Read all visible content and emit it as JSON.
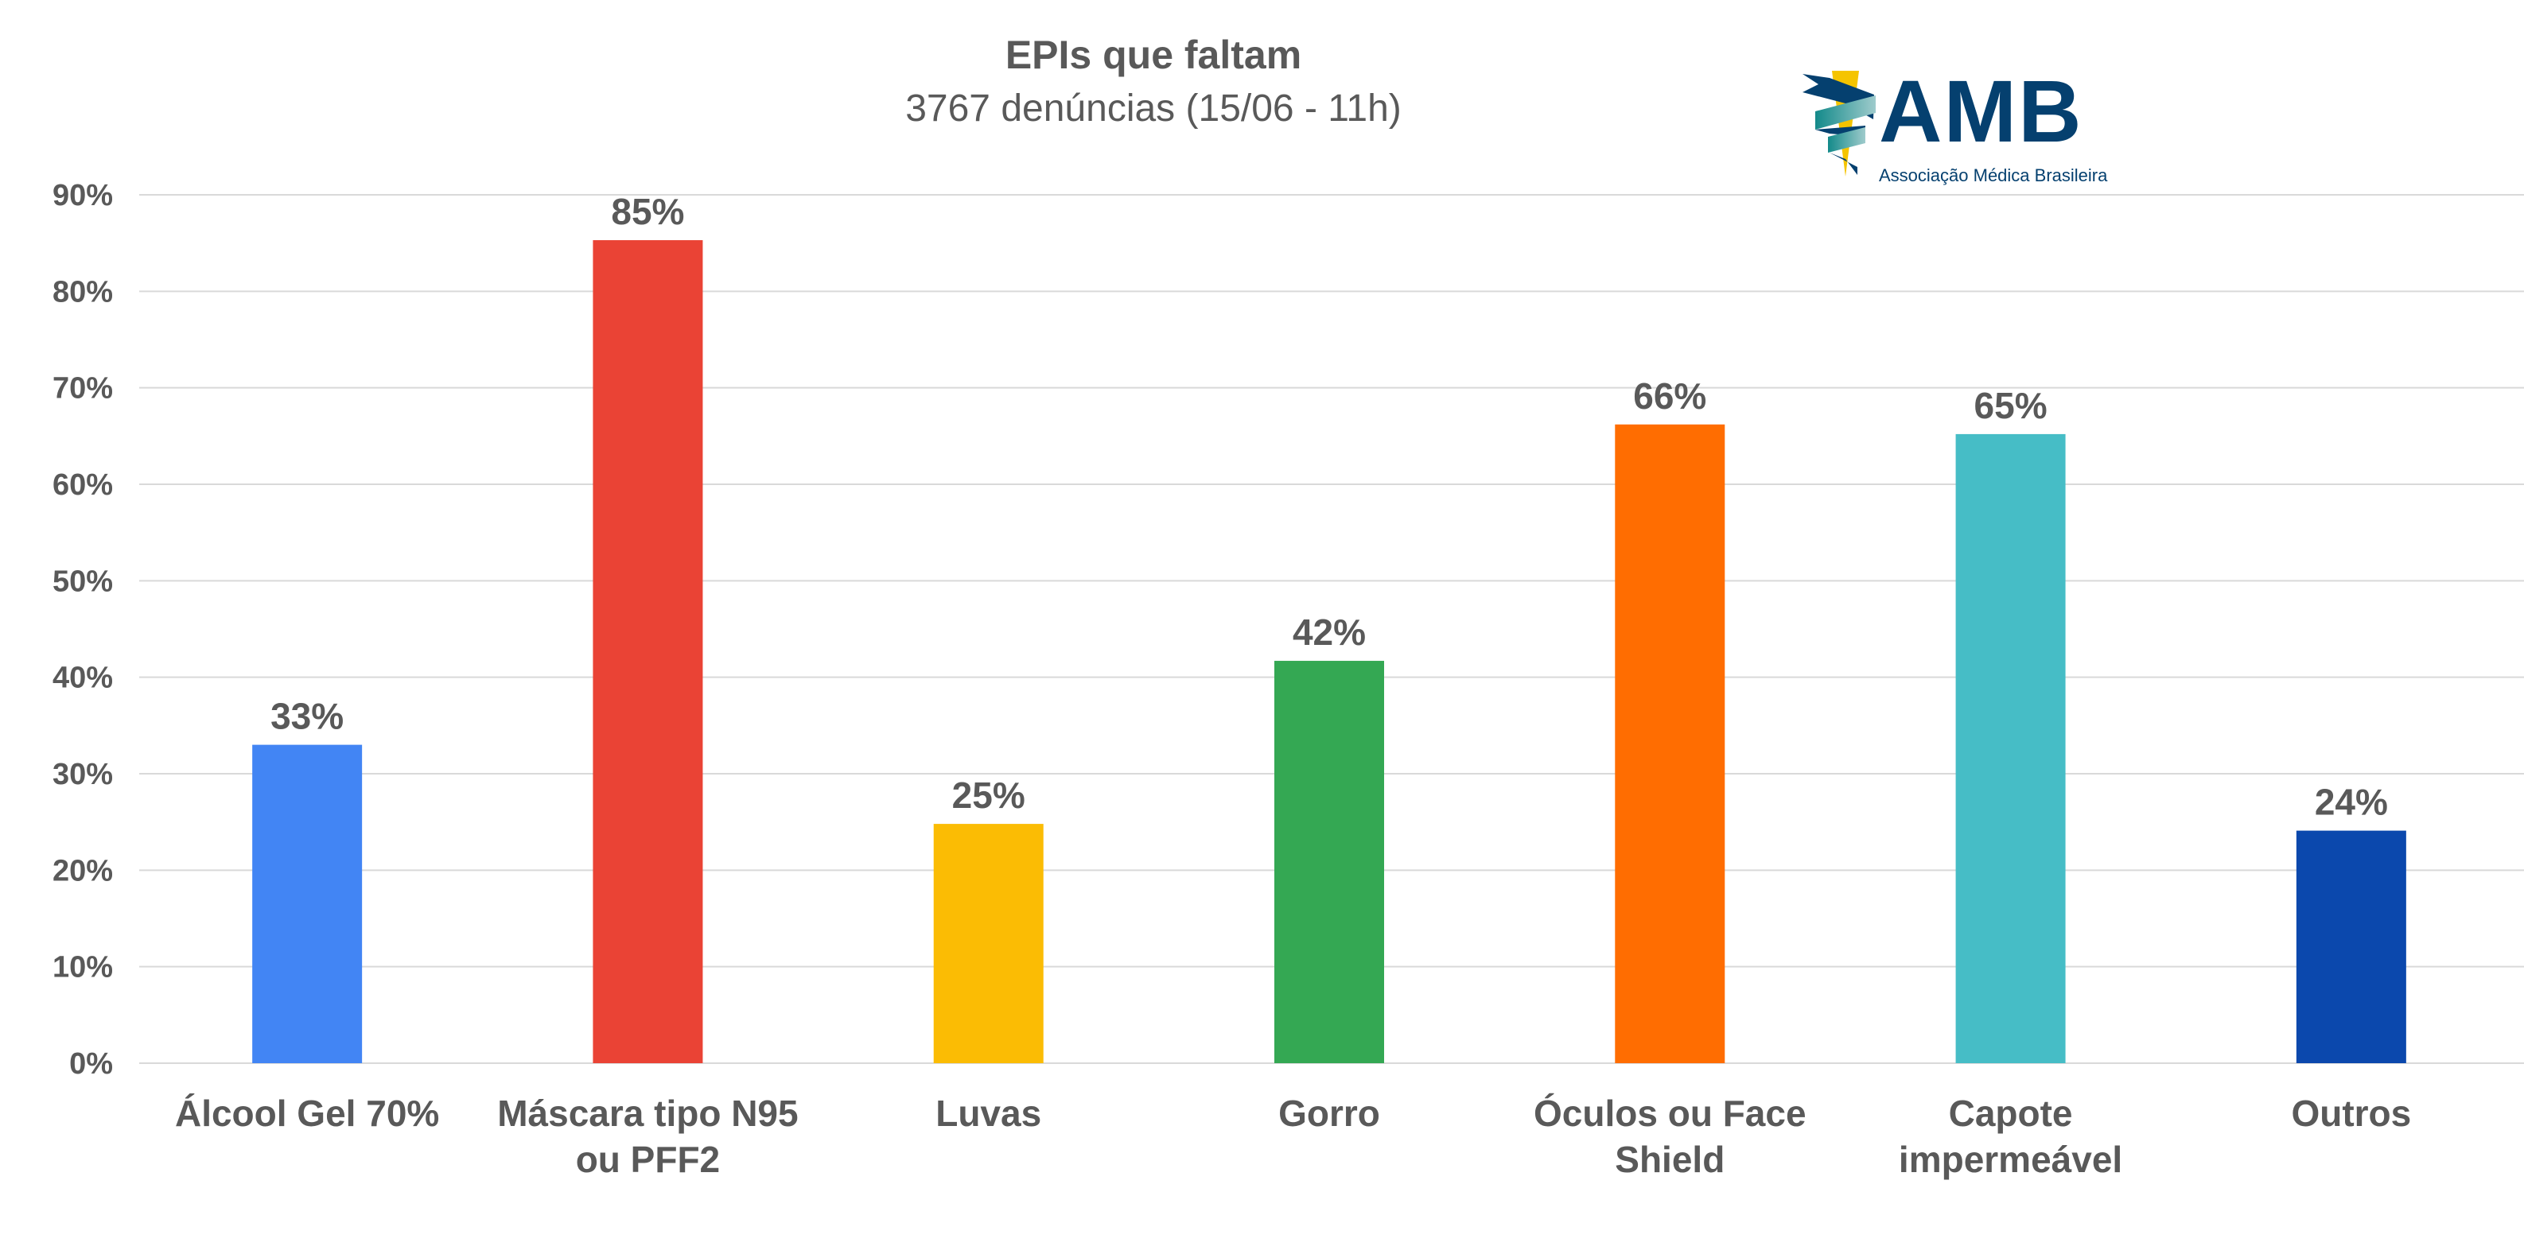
{
  "chart_data": {
    "type": "bar",
    "title": "EPIs que faltam",
    "subtitle": "3767 denúncias (15/06 - 11h)",
    "xlabel": "",
    "ylabel": "",
    "ylim": [
      0,
      90
    ],
    "yticks": [
      "0%",
      "10%",
      "20%",
      "30%",
      "40%",
      "50%",
      "60%",
      "70%",
      "80%",
      "90%"
    ],
    "grid": true,
    "categories": [
      [
        "Álcool Gel 70%"
      ],
      [
        "Máscara tipo N95",
        "ou PFF2"
      ],
      [
        "Luvas"
      ],
      [
        "Gorro"
      ],
      [
        "Óculos ou Face",
        "Shield"
      ],
      [
        "Capote",
        "impermeável"
      ],
      [
        "Outros"
      ]
    ],
    "values": [
      33,
      85.3,
      24.8,
      41.7,
      66.2,
      65.2,
      24.1
    ],
    "data_labels": [
      "33%",
      "85%",
      "25%",
      "42%",
      "66%",
      "65%",
      "24%"
    ],
    "colors": [
      "#4285f4",
      "#ea4335",
      "#fbbc04",
      "#34a853",
      "#ff6d01",
      "#46bdc6",
      "#0b48ad"
    ]
  },
  "logo": {
    "name": "AMB",
    "tagline": "Associação Médica Brasileira",
    "colors": {
      "navy": "#05406f",
      "teal": "#138a8a",
      "yellow": "#f5c400"
    }
  }
}
